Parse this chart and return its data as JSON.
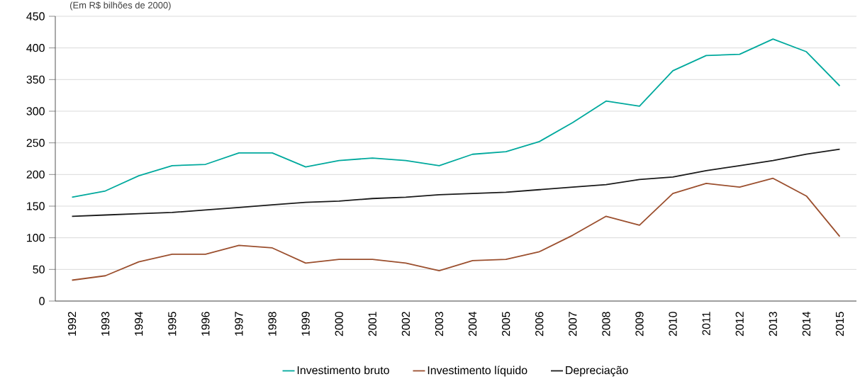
{
  "chart_data": {
    "type": "line",
    "subtitle": "(Em R$ bilhões de 2000)",
    "categories": [
      "1992",
      "1993",
      "1994",
      "1995",
      "1996",
      "1997",
      "1998",
      "1999",
      "2000",
      "2001",
      "2002",
      "2003",
      "2004",
      "2005",
      "2006",
      "2007",
      "2008",
      "2009",
      "2010",
      "2011",
      "2012",
      "2013",
      "2014",
      "2015"
    ],
    "series": [
      {
        "name": "Investimento bruto",
        "color": "#00a99d",
        "values": [
          164,
          174,
          198,
          214,
          216,
          234,
          234,
          212,
          222,
          226,
          222,
          214,
          232,
          236,
          252,
          282,
          316,
          308,
          364,
          388,
          390,
          414,
          394,
          340
        ]
      },
      {
        "name": "Investimento líquido",
        "color": "#9b4f2e",
        "values": [
          33,
          40,
          62,
          74,
          74,
          88,
          84,
          60,
          66,
          66,
          60,
          48,
          64,
          66,
          78,
          104,
          134,
          120,
          170,
          186,
          180,
          194,
          166,
          102
        ]
      },
      {
        "name": "Depreciação",
        "color": "#1a1a1a",
        "values": [
          134,
          136,
          138,
          140,
          144,
          148,
          152,
          156,
          158,
          162,
          164,
          168,
          170,
          172,
          176,
          180,
          184,
          192,
          196,
          206,
          214,
          222,
          232,
          240
        ]
      }
    ],
    "ylim": [
      0,
      450
    ],
    "yticks": [
      0,
      50,
      100,
      150,
      200,
      250,
      300,
      350,
      400,
      450
    ],
    "grid": "y",
    "legend": "bottom"
  }
}
